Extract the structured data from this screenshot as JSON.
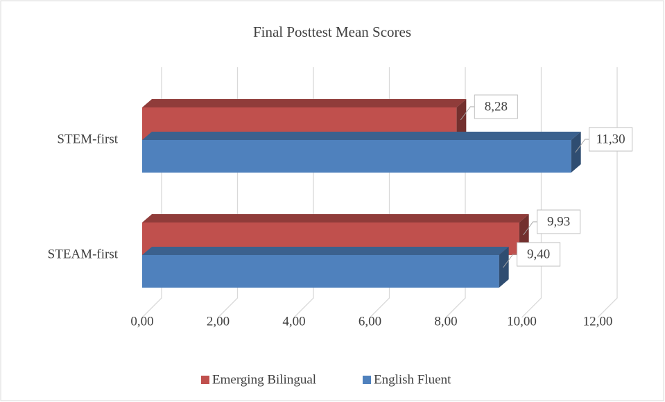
{
  "chart_data": {
    "type": "bar3d_horizontal",
    "title": "Final Posttest Mean Scores",
    "categories": [
      "STEM-first",
      "STEAM-first"
    ],
    "series": [
      {
        "name": "Emerging Bilingual",
        "color": "#c0504d",
        "values": [
          8.28,
          9.93
        ],
        "value_labels": [
          "8,28",
          "9,93"
        ]
      },
      {
        "name": "English Fluent",
        "color": "#4f81bd",
        "values": [
          11.3,
          9.4
        ],
        "value_labels": [
          "11,30",
          "9,40"
        ]
      }
    ],
    "xlim": [
      0,
      12
    ],
    "xticks": [
      {
        "value": 0,
        "label": "0,00"
      },
      {
        "value": 2,
        "label": "2,00"
      },
      {
        "value": 4,
        "label": "4,00"
      },
      {
        "value": 6,
        "label": "6,00"
      },
      {
        "value": 8,
        "label": "8,00"
      },
      {
        "value": 10,
        "label": "10,00"
      },
      {
        "value": 12,
        "label": "12,00"
      }
    ],
    "grid": true,
    "legend": "bottom"
  }
}
